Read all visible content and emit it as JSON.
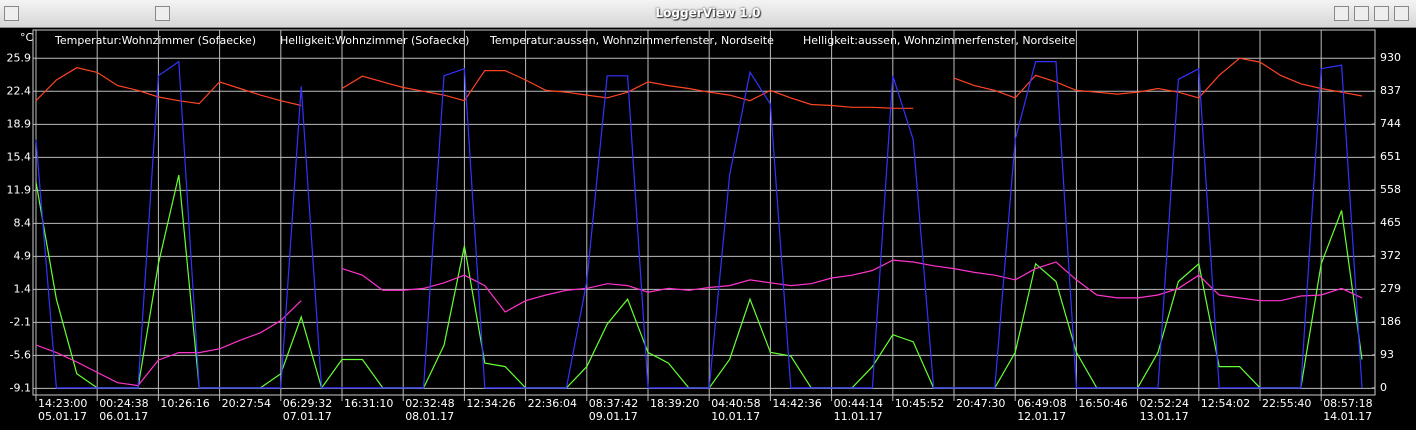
{
  "window": {
    "title": "LoggerView 1.0"
  },
  "chart_data": {
    "type": "line",
    "y_unit": "°C",
    "categories": [
      "14:23:00\n05.01.17",
      null,
      null,
      "00:24:38\n06.01.17",
      null,
      null,
      "10:26:16",
      null,
      null,
      "20:27:54",
      null,
      null,
      "06:29:32\n07.01.17",
      null,
      null,
      "16:31:10",
      null,
      null,
      "02:32:48\n08.01.17",
      null,
      null,
      "12:34:26",
      null,
      null,
      "22:36:04",
      null,
      null,
      "08:37:42\n09.01.17",
      null,
      null,
      "18:39:20",
      null,
      null,
      "04:40:58\n10.01.17",
      null,
      null,
      "14:42:36",
      null,
      null,
      "00:44:14\n11.01.17",
      null,
      null,
      "10:45:52",
      null,
      null,
      "20:47:30",
      null,
      null,
      "06:49:08\n12.01.17",
      null,
      null,
      "16:50:46",
      null,
      null,
      "02:52:24\n13.01.17",
      null,
      null,
      "12:54:02",
      null,
      null,
      "22:55:40",
      null,
      null,
      "08:57:18\n14.01.17",
      null,
      null
    ],
    "ylim": [
      -9.8,
      28.9
    ],
    "yticks": [
      25.9,
      22.4,
      18.9,
      15.4,
      11.9,
      8.4,
      4.9,
      1.4,
      -2.1,
      -5.6,
      -9.1
    ],
    "y2lim": [
      -20,
      1009
    ],
    "y2ticks": [
      930,
      837,
      744,
      651,
      558,
      465,
      372,
      279,
      186,
      93,
      0
    ],
    "grid": true,
    "series": [
      {
        "name": "Temperatur:Wohnzimmer (Sofaecke)",
        "color": "#ff4422",
        "values": [
          21.4,
          23.6,
          24.9,
          24.4,
          23.0,
          22.5,
          21.8,
          21.4,
          21.1,
          23.4,
          22.7,
          22.0,
          21.4,
          20.9,
          null,
          22.7,
          24.0,
          23.4,
          22.8,
          22.4,
          22.0,
          21.4,
          24.6,
          24.6,
          23.6,
          22.5,
          22.3,
          22.0,
          21.7,
          22.3,
          23.4,
          23.0,
          22.7,
          22.3,
          22.0,
          21.4,
          22.5,
          21.7,
          21.0,
          20.9,
          20.7,
          20.7,
          20.6,
          20.6,
          null,
          23.8,
          23.0,
          22.5,
          21.7,
          24.1,
          23.4,
          22.5,
          22.3,
          22.1,
          22.3,
          22.7,
          22.3,
          21.7,
          24.1,
          25.9,
          25.5,
          24.1,
          23.2,
          22.7,
          22.3,
          21.9
        ]
      },
      {
        "name": "Helligkeit:Wohnzimmer (Sofaecke)",
        "color": "#66ff33",
        "axis": "y2",
        "values": [
          580,
          250,
          40,
          0,
          0,
          0,
          350,
          600,
          0,
          0,
          0,
          0,
          40,
          200,
          0,
          80,
          80,
          0,
          0,
          0,
          120,
          400,
          70,
          60,
          0,
          0,
          0,
          60,
          180,
          250,
          100,
          70,
          0,
          0,
          80,
          250,
          100,
          90,
          0,
          0,
          0,
          60,
          150,
          130,
          0,
          0,
          0,
          0,
          100,
          350,
          300,
          100,
          0,
          0,
          0,
          100,
          300,
          350,
          60,
          60,
          0,
          0,
          0,
          350,
          500,
          80
        ]
      },
      {
        "name": "Temperatur:aussen, Wohnzimmerfenster, Nordseite",
        "color": "#ff33cc",
        "values": [
          -4.5,
          -5.3,
          -6.3,
          -7.4,
          -8.5,
          -8.8,
          -6.1,
          -5.3,
          -5.3,
          -4.9,
          -4.0,
          -3.2,
          -1.9,
          0.2,
          null,
          3.6,
          2.9,
          1.3,
          1.3,
          1.5,
          2.1,
          2.9,
          1.8,
          -1.0,
          0.2,
          0.8,
          1.3,
          1.5,
          2.0,
          1.8,
          1.1,
          1.5,
          1.3,
          1.6,
          1.8,
          2.4,
          2.1,
          1.8,
          2.0,
          2.6,
          2.9,
          3.4,
          4.5,
          4.3,
          3.9,
          3.6,
          3.2,
          2.9,
          2.4,
          3.6,
          4.3,
          2.4,
          0.8,
          0.5,
          0.5,
          0.8,
          1.5,
          2.9,
          0.8,
          0.5,
          0.2,
          0.2,
          0.7,
          0.8,
          1.5,
          0.5
        ]
      },
      {
        "name": "Helligkeit:aussen, Wohnzimmerfenster, Nordseite",
        "color": "#3333ff",
        "axis": "y2",
        "values": [
          700,
          0,
          0,
          0,
          0,
          0,
          880,
          920,
          0,
          0,
          0,
          0,
          0,
          850,
          0,
          0,
          0,
          0,
          0,
          0,
          880,
          900,
          0,
          0,
          0,
          0,
          0,
          300,
          880,
          880,
          0,
          0,
          0,
          0,
          600,
          890,
          800,
          0,
          0,
          0,
          0,
          0,
          880,
          700,
          0,
          0,
          0,
          0,
          700,
          920,
          920,
          0,
          0,
          0,
          0,
          0,
          870,
          900,
          0,
          0,
          0,
          0,
          0,
          900,
          910,
          0
        ]
      }
    ]
  }
}
